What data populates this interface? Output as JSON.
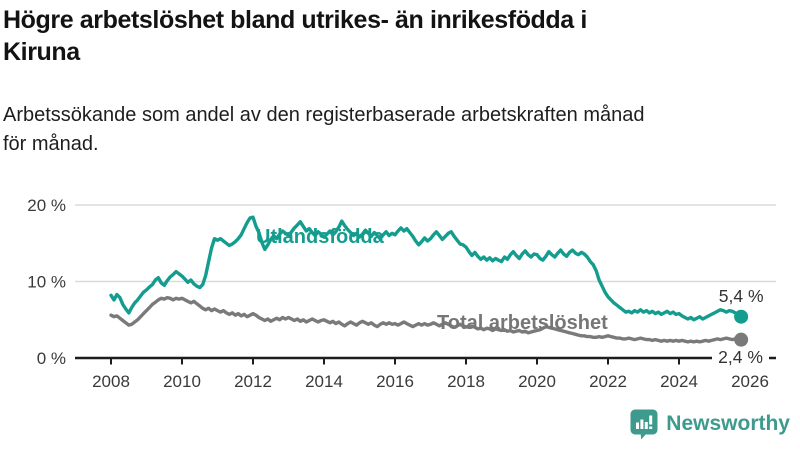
{
  "header": {
    "title_lines": [
      "Högre arbetslöshet bland utrikes- än inrikesfödda i",
      "Kiruna"
    ],
    "subtitle_lines": [
      "Arbetssökande som andel av den registerbaserade arbetskraften månad",
      "för månad."
    ]
  },
  "chart_data": {
    "type": "line",
    "unit": "%",
    "x_start": 2008.0,
    "points_per_year": 12,
    "xlim": [
      2007.0,
      2026.7
    ],
    "ylim": [
      0,
      20
    ],
    "grid": "horizontal",
    "legend_position": "inline-labels-on-lines",
    "yticks": [
      {
        "v": 0,
        "label": "0 %"
      },
      {
        "v": 10,
        "label": "10 %"
      },
      {
        "v": 20,
        "label": "20 %"
      }
    ],
    "xticks": [
      {
        "v": 2008,
        "label": "2008"
      },
      {
        "v": 2010,
        "label": "2010"
      },
      {
        "v": 2012,
        "label": "2012"
      },
      {
        "v": 2014,
        "label": "2014"
      },
      {
        "v": 2016,
        "label": "2016"
      },
      {
        "v": 2018,
        "label": "2018"
      },
      {
        "v": 2020,
        "label": "2020"
      },
      {
        "v": 2022,
        "label": "2022"
      },
      {
        "v": 2024,
        "label": "2024"
      },
      {
        "v": 2026,
        "label": "2026"
      }
    ],
    "series": [
      {
        "name": "Utlandsfödda",
        "color": "#149d8e",
        "label_color": "#149d8e",
        "end_label": "5,4 %",
        "last_value": 5.4,
        "values": [
          8.2,
          7.6,
          8.3,
          7.9,
          7.0,
          6.4,
          5.9,
          6.6,
          7.2,
          7.6,
          8.1,
          8.6,
          8.9,
          9.3,
          9.6,
          10.2,
          10.5,
          9.8,
          9.5,
          10.1,
          10.6,
          10.9,
          11.3,
          11.0,
          10.7,
          10.3,
          9.9,
          10.2,
          9.7,
          9.4,
          9.2,
          9.6,
          10.8,
          12.6,
          14.4,
          15.6,
          15.4,
          15.6,
          15.3,
          15.0,
          14.7,
          14.9,
          15.2,
          15.6,
          16.1,
          16.9,
          17.7,
          18.3,
          18.4,
          17.2,
          16.4,
          15.1,
          14.2,
          14.8,
          15.5,
          16.0,
          15.6,
          16.2,
          16.6,
          16.3,
          16.0,
          16.5,
          17.0,
          17.4,
          17.8,
          17.2,
          16.6,
          16.9,
          16.4,
          16.0,
          16.5,
          16.2,
          15.8,
          16.2,
          16.6,
          16.1,
          16.5,
          17.1,
          17.9,
          17.3,
          16.8,
          16.4,
          16.0,
          16.3,
          15.8,
          16.2,
          16.7,
          16.3,
          15.9,
          16.4,
          16.0,
          15.6,
          16.1,
          16.5,
          16.0,
          16.3,
          16.1,
          16.6,
          17.0,
          16.6,
          16.9,
          16.4,
          15.9,
          15.3,
          14.8,
          15.2,
          15.7,
          15.3,
          15.6,
          16.1,
          16.5,
          16.0,
          15.5,
          15.9,
          16.3,
          16.5,
          15.9,
          15.4,
          14.9,
          14.8,
          14.5,
          13.9,
          13.4,
          13.8,
          13.3,
          12.9,
          13.2,
          12.8,
          13.1,
          12.7,
          13.0,
          12.8,
          12.6,
          13.2,
          12.9,
          13.5,
          13.9,
          13.4,
          13.0,
          13.6,
          14.0,
          13.5,
          13.2,
          13.6,
          13.5,
          13.0,
          12.8,
          13.3,
          13.9,
          13.5,
          13.2,
          13.7,
          14.1,
          13.6,
          13.3,
          13.8,
          14.1,
          13.7,
          13.5,
          13.8,
          13.6,
          13.2,
          12.6,
          12.2,
          11.4,
          10.2,
          9.4,
          8.6,
          8.0,
          7.6,
          7.2,
          6.9,
          6.6,
          6.3,
          6.0,
          6.1,
          5.9,
          6.2,
          6.0,
          6.3,
          6.0,
          6.2,
          5.9,
          6.1,
          5.8,
          6.0,
          5.7,
          5.9,
          6.1,
          5.8,
          6.0,
          5.7,
          5.8,
          5.5,
          5.3,
          5.1,
          5.3,
          5.0,
          5.2,
          5.4,
          5.1,
          5.3,
          5.5,
          5.7,
          5.9,
          6.1,
          6.3,
          6.2,
          6.0,
          6.2,
          6.1,
          5.9,
          5.6,
          5.4
        ]
      },
      {
        "name": "Total arbetslöshet",
        "color": "#7a7a7a",
        "label_color": "#767676",
        "end_label": "2,4 %",
        "last_value": 2.4,
        "values": [
          5.6,
          5.4,
          5.5,
          5.2,
          4.9,
          4.6,
          4.3,
          4.4,
          4.7,
          5.0,
          5.4,
          5.8,
          6.2,
          6.6,
          7.0,
          7.3,
          7.6,
          7.8,
          7.7,
          7.9,
          7.8,
          7.6,
          7.8,
          7.7,
          7.8,
          7.6,
          7.4,
          7.2,
          7.4,
          7.1,
          6.8,
          6.5,
          6.3,
          6.5,
          6.2,
          6.4,
          6.2,
          6.0,
          6.2,
          5.9,
          5.7,
          5.9,
          5.6,
          5.8,
          5.5,
          5.7,
          5.4,
          5.6,
          5.8,
          5.6,
          5.3,
          5.1,
          4.9,
          5.1,
          4.8,
          5.0,
          5.2,
          5.0,
          5.3,
          5.1,
          5.3,
          5.1,
          4.9,
          5.1,
          4.8,
          5.0,
          4.7,
          4.9,
          5.1,
          4.9,
          4.7,
          4.9,
          5.0,
          4.8,
          4.6,
          4.8,
          4.5,
          4.7,
          4.4,
          4.2,
          4.5,
          4.7,
          4.5,
          4.3,
          4.6,
          4.8,
          4.6,
          4.4,
          4.6,
          4.3,
          4.1,
          4.4,
          4.6,
          4.4,
          4.6,
          4.4,
          4.5,
          4.3,
          4.5,
          4.7,
          4.5,
          4.3,
          4.1,
          4.3,
          4.5,
          4.3,
          4.5,
          4.3,
          4.4,
          4.6,
          4.4,
          4.2,
          4.4,
          4.6,
          4.4,
          4.2,
          4.0,
          4.2,
          4.4,
          4.2,
          4.1,
          4.0,
          4.2,
          4.0,
          3.8,
          3.9,
          3.7,
          3.9,
          3.8,
          3.6,
          3.8,
          3.7,
          3.6,
          3.7,
          3.5,
          3.6,
          3.4,
          3.5,
          3.6,
          3.4,
          3.5,
          3.3,
          3.4,
          3.5,
          3.6,
          3.7,
          3.9,
          4.1,
          4.0,
          3.9,
          3.8,
          3.7,
          3.6,
          3.5,
          3.4,
          3.3,
          3.2,
          3.1,
          3.0,
          2.9,
          2.9,
          2.8,
          2.8,
          2.7,
          2.7,
          2.8,
          2.7,
          2.8,
          2.9,
          2.8,
          2.7,
          2.6,
          2.6,
          2.5,
          2.5,
          2.6,
          2.5,
          2.4,
          2.5,
          2.6,
          2.5,
          2.4,
          2.4,
          2.3,
          2.4,
          2.3,
          2.2,
          2.3,
          2.2,
          2.3,
          2.2,
          2.3,
          2.2,
          2.3,
          2.2,
          2.1,
          2.2,
          2.1,
          2.2,
          2.1,
          2.2,
          2.3,
          2.2,
          2.3,
          2.4,
          2.5,
          2.4,
          2.5,
          2.6,
          2.5,
          2.4,
          2.5,
          2.4,
          2.4
        ]
      }
    ]
  },
  "footer": {
    "brand": "Newsworthy"
  },
  "colors": {
    "accent_teal": "#149d8e",
    "logo_teal": "#3e9a8c",
    "line_gray": "#7a7a7a",
    "axis": "#1d1d1d",
    "gridline": "#dadada",
    "tick_text": "#3a3a3a",
    "value_label_text": "#333333"
  }
}
